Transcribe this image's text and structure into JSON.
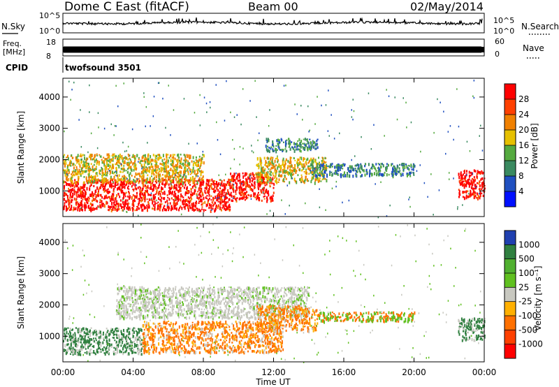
{
  "header": {
    "station": "Dome C East (fitACF)",
    "beam": "Beam 00",
    "date": "02/May/2014"
  },
  "sky_panel": {
    "left_label": "N.Sky",
    "right_label": "N.Search",
    "left_ticks": [
      "10^5",
      "10^0"
    ],
    "right_ticks": [
      "10^5",
      "10^0"
    ]
  },
  "freq_panel": {
    "left_label_1": "Freq.",
    "left_label_2": "[MHz]",
    "right_label": "Nave",
    "left_ticks": [
      "18",
      "8"
    ],
    "right_ticks": [
      "60",
      "0"
    ]
  },
  "cpid_panel": {
    "label": "CPID",
    "text": "twofsound 3501"
  },
  "x_axis": {
    "label": "Time UT",
    "ticks": [
      "00:00",
      "04:00",
      "08:00",
      "12:00",
      "16:00",
      "20:00",
      "00:00"
    ]
  },
  "chart_data": [
    {
      "type": "heatmap",
      "title": "Power",
      "ylabel": "Slant Range [km]",
      "xlabel": "Time UT",
      "x_range_hours": [
        0,
        24
      ],
      "ylim": [
        180,
        4600
      ],
      "y_ticks": [
        1000,
        2000,
        3000,
        4000
      ],
      "colorbar": {
        "label": "Power [dB]",
        "ticks": [
          "4",
          "8",
          "12",
          "16",
          "20",
          "24",
          "28"
        ],
        "colors": [
          "#0010ff",
          "#2050c0",
          "#3a8a60",
          "#55aa40",
          "#e6c000",
          "#f08000",
          "#ff4000",
          "#ff0000"
        ]
      },
      "regions": [
        {
          "t0": 0.0,
          "t1": 9.5,
          "r0": 400,
          "r1": 1400,
          "level": "high"
        },
        {
          "t0": 9.5,
          "t1": 12.0,
          "r0": 700,
          "r1": 1600,
          "level": "high"
        },
        {
          "t0": 0.0,
          "t1": 8.0,
          "r0": 1300,
          "r1": 2200,
          "level": "medium"
        },
        {
          "t0": 11.0,
          "t1": 15.0,
          "r0": 1300,
          "r1": 2100,
          "level": "medium"
        },
        {
          "t0": 11.5,
          "t1": 14.5,
          "r0": 2300,
          "r1": 2700,
          "level": "low"
        },
        {
          "t0": 14.0,
          "t1": 20.0,
          "r0": 1500,
          "r1": 1900,
          "level": "low"
        },
        {
          "t0": 22.5,
          "t1": 24.0,
          "r0": 800,
          "r1": 1700,
          "level": "high"
        }
      ]
    },
    {
      "type": "heatmap",
      "title": "Velocity",
      "ylabel": "Slant Range [km]",
      "xlabel": "Time UT",
      "x_range_hours": [
        0,
        24
      ],
      "ylim": [
        180,
        4600
      ],
      "y_ticks": [
        1000,
        2000,
        3000,
        4000
      ],
      "colorbar": {
        "label": "Velocity [m s⁻¹]",
        "ticks": [
          "1000",
          "500",
          "100",
          "25",
          "-25",
          "-100",
          "-500",
          "-1000"
        ],
        "colors": [
          "#2040b0",
          "#308040",
          "#50b030",
          "#60c020",
          "#c8c8c0",
          "#ffb000",
          "#ff7000",
          "#ff4000",
          "#ff0000"
        ]
      },
      "regions": [
        {
          "t0": 0.0,
          "t1": 4.5,
          "r0": 450,
          "r1": 1300,
          "level": "positive"
        },
        {
          "t0": 4.5,
          "t1": 12.5,
          "r0": 500,
          "r1": 1500,
          "level": "negative"
        },
        {
          "t0": 3.0,
          "t1": 14.0,
          "r0": 1600,
          "r1": 2600,
          "level": "near-zero"
        },
        {
          "t0": 11.0,
          "t1": 14.5,
          "r0": 1200,
          "r1": 2000,
          "level": "negative"
        },
        {
          "t0": 14.5,
          "t1": 20.0,
          "r0": 1500,
          "r1": 1800,
          "level": "mixed"
        },
        {
          "t0": 22.5,
          "t1": 24.0,
          "r0": 900,
          "r1": 1600,
          "level": "positive"
        }
      ]
    }
  ]
}
